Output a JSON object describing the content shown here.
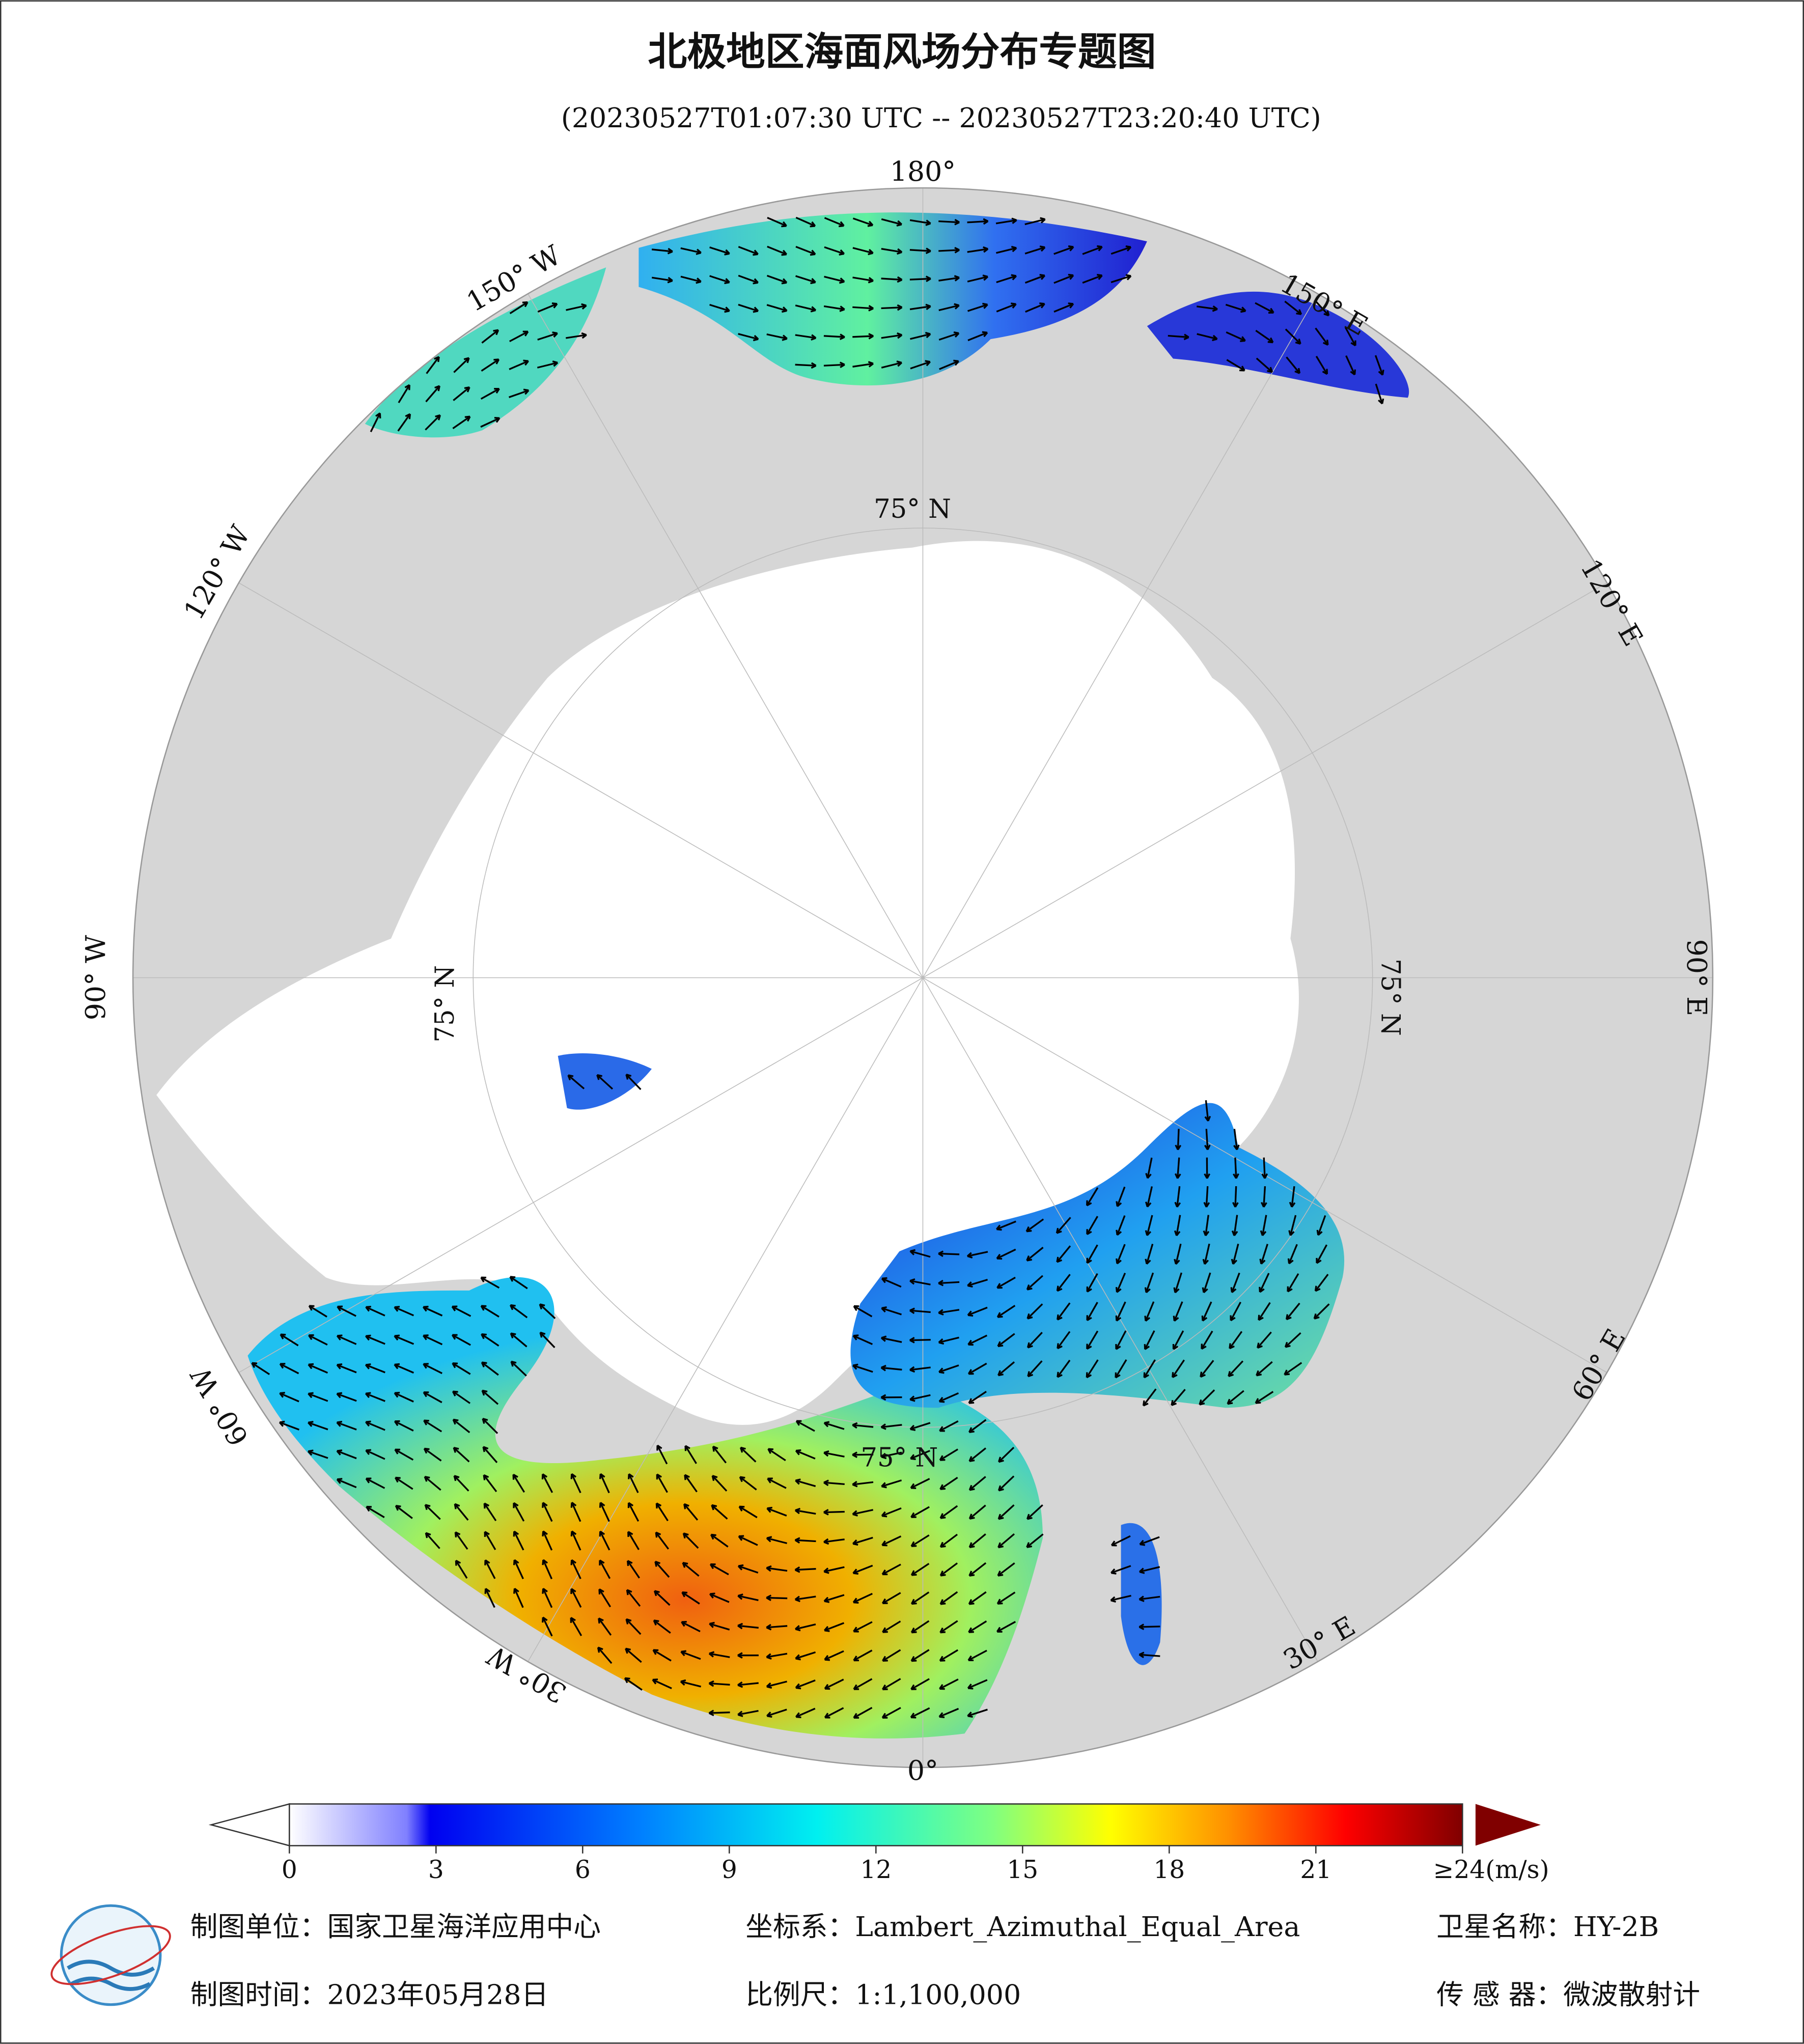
{
  "header": {
    "title": "北极地区海面风场分布专题图",
    "subtitle": "(20230527T01:07:30 UTC -- 20230527T23:20:40 UTC)"
  },
  "map": {
    "meridian_labels": [
      "180°",
      "150° W",
      "120° W",
      "90° W",
      "60° W",
      "30° W",
      "0°",
      "30° E",
      "60° E",
      "90° E",
      "120° E",
      "150° E"
    ],
    "parallel_labels": [
      "75° N",
      "75° N",
      "75° N",
      "75° N"
    ]
  },
  "colorbar": {
    "lim": [
      0,
      24
    ],
    "ticks": [
      0,
      3,
      6,
      9,
      12,
      15,
      18,
      21,
      {
        "value": 24,
        "label": "≥24(m/s)"
      }
    ]
  },
  "footer": {
    "unit": "制图单位：国家卫星海洋应用中心",
    "crs": "坐标系：Lambert_Azimuthal_Equal_Area",
    "satellite": "卫星名称：HY-2B",
    "date": "制图时间：2023年05月28日",
    "scale": "比例尺：1:1,100,000",
    "sensor": "传 感 器：微波散射计"
  }
}
